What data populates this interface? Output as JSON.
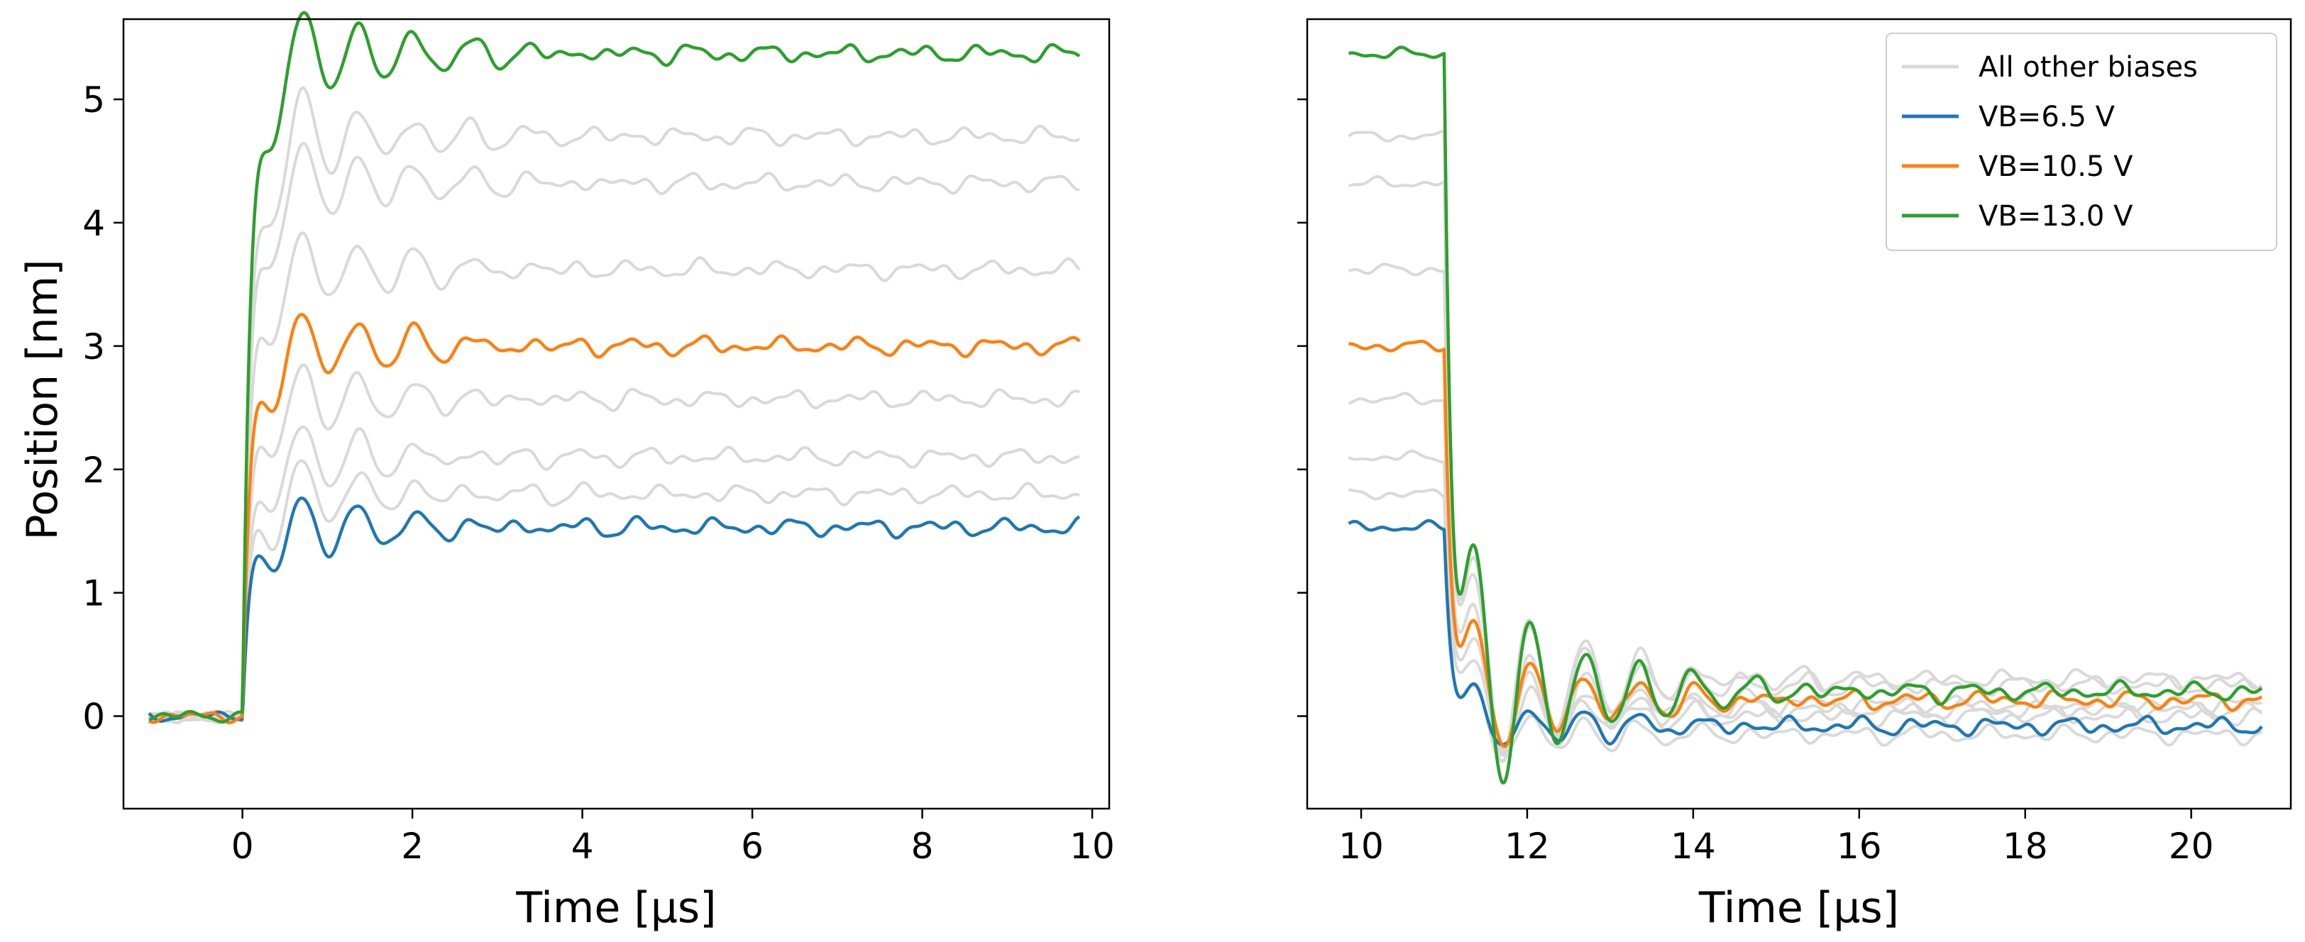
{
  "chart_data": [
    {
      "type": "line",
      "panel": "left",
      "xlabel": "Time [μs]",
      "ylabel": "Position [nm]",
      "xlim": [
        -1.4,
        10.2
      ],
      "ylim": [
        -0.75,
        5.65
      ],
      "xticks": [
        0,
        2,
        4,
        6,
        8,
        10
      ],
      "xtick_labels": [
        "0",
        "2",
        "4",
        "6",
        "8",
        "10"
      ],
      "yticks": [
        0,
        1,
        2,
        3,
        4,
        5
      ],
      "ytick_labels": [
        "0",
        "1",
        "2",
        "3",
        "4",
        "5"
      ],
      "grid": false,
      "t_range": [
        -1.1,
        9.85
      ],
      "step_time": 0.0,
      "series": [
        {
          "name": "VB=6.5 V",
          "color": "#1f77b4",
          "final": 1.53
        },
        {
          "name": "VB=10.5 V",
          "color": "#ff7f0e",
          "final": 3.0
        },
        {
          "name": "VB=13.0 V",
          "color": "#2ca02c",
          "final": 5.37
        }
      ],
      "background_series": {
        "name": "All other biases",
        "color": "#d9d9d9",
        "finals": [
          1.8,
          2.1,
          2.57,
          3.62,
          4.32,
          4.7
        ]
      }
    },
    {
      "type": "line",
      "panel": "right",
      "xlabel": "Time [μs]",
      "ylabel": "",
      "xlim": [
        9.35,
        21.2
      ],
      "ylim": [
        -0.75,
        5.65
      ],
      "xticks": [
        10,
        12,
        14,
        16,
        18,
        20
      ],
      "xtick_labels": [
        "10",
        "12",
        "14",
        "16",
        "18",
        "20"
      ],
      "yticks": [
        0,
        1,
        2,
        3,
        4,
        5
      ],
      "ytick_labels": [],
      "grid": false,
      "legend_position": "top-right",
      "t_range": [
        9.85,
        20.85
      ],
      "step_time": 11.0,
      "series": [
        {
          "name": "VB=6.5 V",
          "color": "#1f77b4",
          "initial": 1.53,
          "final": -0.08
        },
        {
          "name": "VB=10.5 V",
          "color": "#ff7f0e",
          "initial": 3.0,
          "final": 0.13
        },
        {
          "name": "VB=13.0 V",
          "color": "#2ca02c",
          "initial": 5.37,
          "final": 0.2
        }
      ],
      "background_series": {
        "name": "All other biases",
        "color": "#d9d9d9",
        "initials": [
          1.8,
          2.1,
          2.57,
          3.62,
          4.32,
          4.7
        ],
        "finals": [
          -0.15,
          0.0,
          0.05,
          0.1,
          0.25,
          0.3
        ]
      }
    }
  ],
  "legend": [
    {
      "label": "All other biases",
      "color": "#d9d9d9"
    },
    {
      "label": "VB=6.5 V",
      "color": "#1f77b4"
    },
    {
      "label": "VB=10.5 V",
      "color": "#ff7f0e"
    },
    {
      "label": "VB=13.0 V",
      "color": "#2ca02c"
    }
  ]
}
